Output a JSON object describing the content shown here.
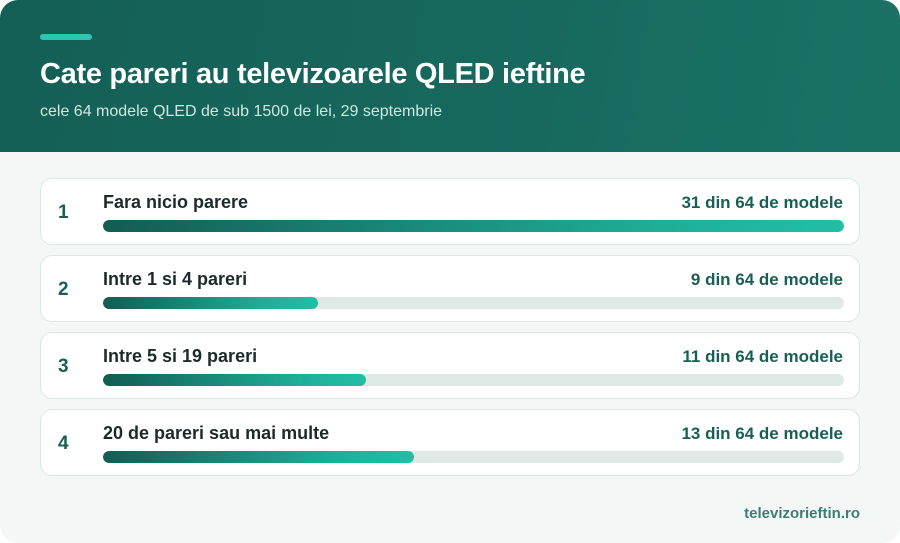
{
  "header": {
    "title": "Cate pareri au televizoarele QLED ieftine",
    "subtitle": "cele 64 modele QLED de sub 1500 de lei, 29 septembrie"
  },
  "source": "televizorieftin.ro",
  "colors": {
    "header_bg": "#17695e",
    "accent": "#2ec4ad",
    "bar_start": "#135c52",
    "bar_end": "#22bea6",
    "track": "#dfe9e6"
  },
  "chart_data": {
    "type": "bar",
    "orientation": "horizontal",
    "title": "Cate pareri au televizoarele QLED ieftine",
    "subtitle": "cele 64 modele QLED de sub 1500 de lei, 29 septembrie",
    "total": 64,
    "categories": [
      "Fara nicio parere",
      "Intre 1 si 4 pareri",
      "Intre 5 si 19 pareri",
      "20 de pareri sau mai multe"
    ],
    "values": [
      31,
      9,
      11,
      13
    ],
    "ranks": [
      "1",
      "2",
      "3",
      "4"
    ],
    "value_labels": [
      "31 din 64 de modele",
      "9 din 64 de modele",
      "11 din 64 de modele",
      "13 din 64 de modele"
    ]
  }
}
